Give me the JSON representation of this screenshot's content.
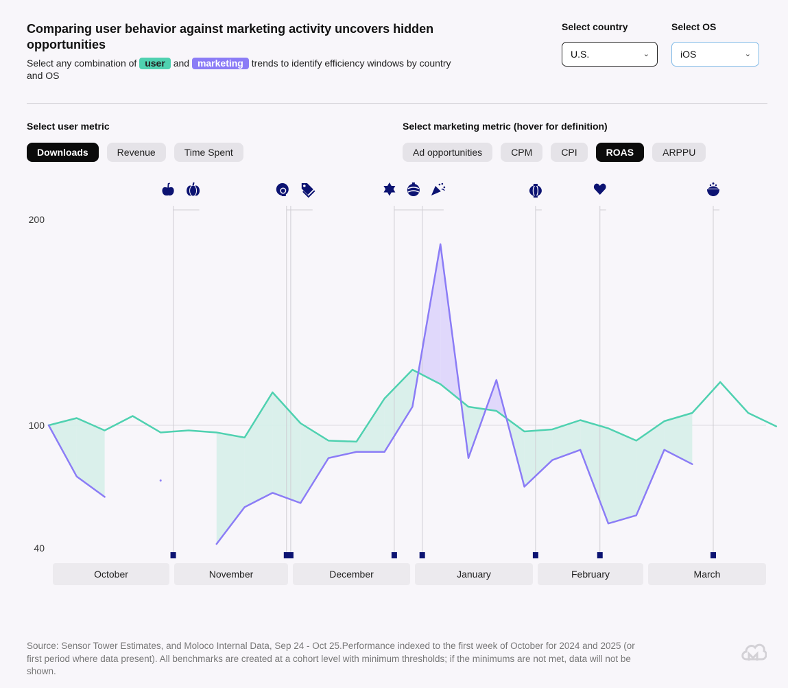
{
  "header": {
    "title": "Comparing user behavior against marketing activity uncovers hidden opportunities",
    "subtitle_pre": "Select any combination of",
    "chip_user": "user",
    "subtitle_mid": "and",
    "chip_marketing": "marketing",
    "subtitle_post": "trends to identify efficiency windows by country and OS"
  },
  "filters": {
    "country_label": "Select country",
    "country_value": "U.S.",
    "os_label": "Select OS",
    "os_value": "iOS"
  },
  "user_metric": {
    "label": "Select user metric",
    "options": [
      "Downloads",
      "Revenue",
      "Time Spent"
    ],
    "selected": "Downloads"
  },
  "marketing_metric": {
    "label": "Select marketing metric (hover for definition)",
    "options": [
      "Ad opportunities",
      "CPM",
      "CPI",
      "ROAS",
      "ARPPU"
    ],
    "selected": "ROAS"
  },
  "colors": {
    "user": "#4fd1b0",
    "marketing": "#8b7cf6",
    "user_fill": "#d6efe9",
    "marketing_fill": "#ddd5fb",
    "event": "#0c1372"
  },
  "chart_data": {
    "type": "line",
    "y_ticks": [
      200,
      100,
      40
    ],
    "baseline": 100,
    "x_count": 27,
    "months": [
      "October",
      "November",
      "December",
      "January",
      "February",
      "March"
    ],
    "series": [
      {
        "name": "Downloads",
        "values": [
          100,
          103.5,
          97.5,
          104.5,
          96.5,
          97.5,
          96.5,
          94,
          116,
          101,
          92.5,
          92,
          113,
          127,
          120,
          109,
          107,
          97,
          98,
          102.5,
          98.5,
          92.5,
          102,
          106,
          121,
          106,
          99.5
        ]
      },
      {
        "name": "ROAS",
        "values": [
          100,
          75,
          65,
          null,
          73,
          null,
          42,
          60,
          67,
          62,
          84,
          87,
          87,
          109,
          188,
          84,
          122,
          70,
          83,
          88,
          52,
          56,
          88,
          81,
          null,
          null,
          null
        ]
      }
    ],
    "events": [
      {
        "x": 4.45,
        "icons": [
          "apple-icon",
          "pumpkin-icon"
        ]
      },
      {
        "x": 8.5,
        "icons": [
          "turkey-icon",
          "sale-tag-icon"
        ]
      },
      {
        "x": 8.65,
        "icons": []
      },
      {
        "x": 12.35,
        "icons": [
          "star-of-david-icon",
          "ornament-icon",
          "party-popper-icon"
        ]
      },
      {
        "x": 13.35,
        "icons": []
      },
      {
        "x": 17.4,
        "icons": [
          "lantern-icon"
        ]
      },
      {
        "x": 19.7,
        "icons": [
          "heart-icon"
        ]
      },
      {
        "x": 23.75,
        "icons": [
          "food-bowl-icon"
        ]
      }
    ]
  },
  "footer": {
    "source": "Source: Sensor Tower Estimates, and Moloco Internal Data, Sep 24 - Oct 25.Performance indexed to the first week of October for 2024 and 2025 (or first period where data present). All benchmarks are created at a cohort level with minimum thresholds; if the minimums are not met, data will not be shown."
  }
}
